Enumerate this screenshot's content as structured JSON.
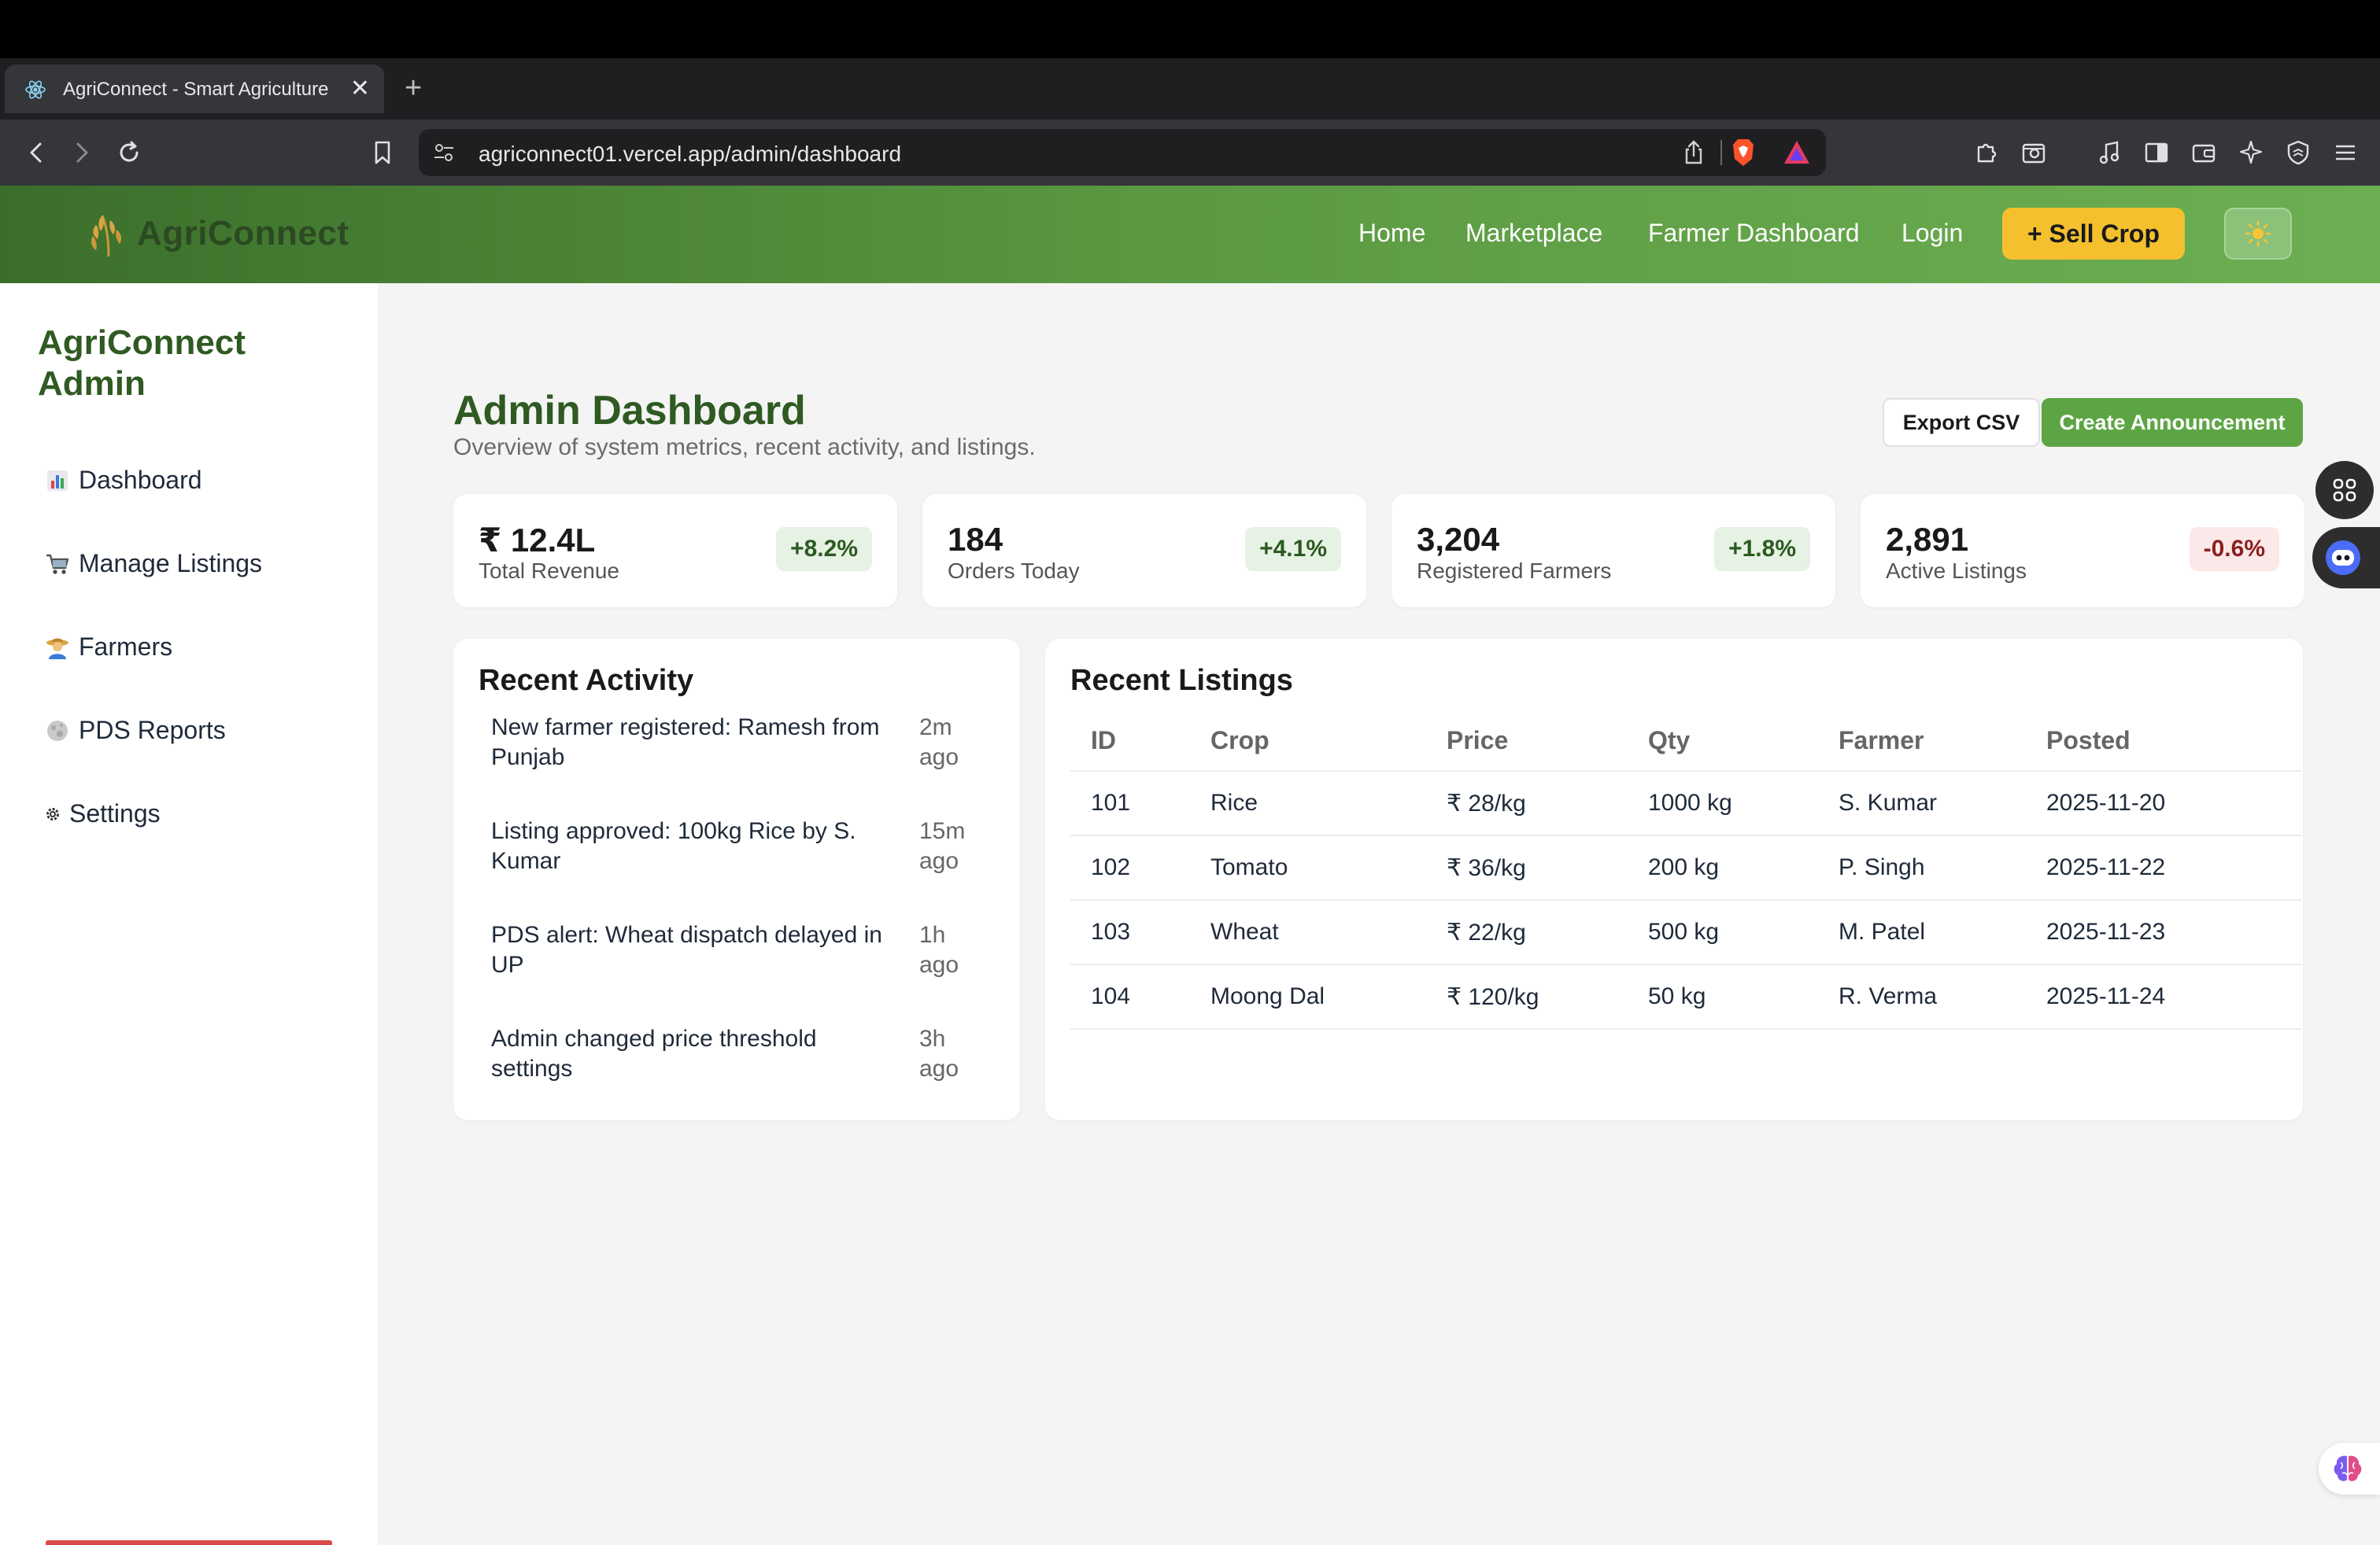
{
  "browser": {
    "tab_title": "AgriConnect - Smart Agriculture",
    "url": "agriconnect01.vercel.app/admin/dashboard"
  },
  "site": {
    "brand": "AgriConnect",
    "nav": {
      "home": "Home",
      "marketplace": "Marketplace",
      "farmer_dashboard": "Farmer Dashboard",
      "login": "Login",
      "sell_crop": "+ Sell Crop"
    }
  },
  "sidebar": {
    "title": "AgriConnect Admin",
    "items": [
      {
        "label": "Dashboard",
        "icon": "bar-chart-icon"
      },
      {
        "label": "Manage Listings",
        "icon": "cart-icon"
      },
      {
        "label": "Farmers",
        "icon": "farmer-icon"
      },
      {
        "label": "PDS Reports",
        "icon": "moon-icon"
      },
      {
        "label": "Settings",
        "icon": "gear-icon"
      }
    ]
  },
  "header": {
    "title": "Admin Dashboard",
    "subtitle": "Overview of system metrics, recent activity, and listings.",
    "export_label": "Export CSV",
    "announce_label": "Create Announcement"
  },
  "stats": [
    {
      "value": "₹ 12.4L",
      "label": "Total Revenue",
      "change": "+8.2%"
    },
    {
      "value": "184",
      "label": "Orders Today",
      "change": "+4.1%"
    },
    {
      "value": "3,204",
      "label": "Registered Farmers",
      "change": "+1.8%"
    },
    {
      "value": "2,891",
      "label": "Active Listings",
      "change": "-0.6%"
    }
  ],
  "activity": {
    "title": "Recent Activity",
    "items": [
      {
        "text": "New farmer registered: Ramesh from Punjab",
        "time": "2m ago"
      },
      {
        "text": "Listing approved: 100kg Rice by S. Kumar",
        "time": "15m ago"
      },
      {
        "text": "PDS alert: Wheat dispatch delayed in UP",
        "time": "1h ago"
      },
      {
        "text": "Admin changed price threshold settings",
        "time": "3h ago"
      }
    ]
  },
  "listings": {
    "title": "Recent Listings",
    "columns": [
      "ID",
      "Crop",
      "Price",
      "Qty",
      "Farmer",
      "Posted"
    ],
    "rows": [
      [
        "101",
        "Rice",
        "₹ 28/kg",
        "1000 kg",
        "S. Kumar",
        "2025-11-20"
      ],
      [
        "102",
        "Tomato",
        "₹ 36/kg",
        "200 kg",
        "P. Singh",
        "2025-11-22"
      ],
      [
        "103",
        "Wheat",
        "₹ 22/kg",
        "500 kg",
        "M. Patel",
        "2025-11-23"
      ],
      [
        "104",
        "Moong Dal",
        "₹ 120/kg",
        "50 kg",
        "R. Verma",
        "2025-11-24"
      ]
    ]
  },
  "colors": {
    "brand_green": "#2f5a22",
    "header_gradient_start": "#3b6e2b",
    "header_gradient_end": "#6cae52",
    "sell_button": "#f4c02e",
    "announce_button": "#5da544",
    "positive_badge": "#e6f2e3",
    "negative_badge": "#fbe8e8"
  }
}
